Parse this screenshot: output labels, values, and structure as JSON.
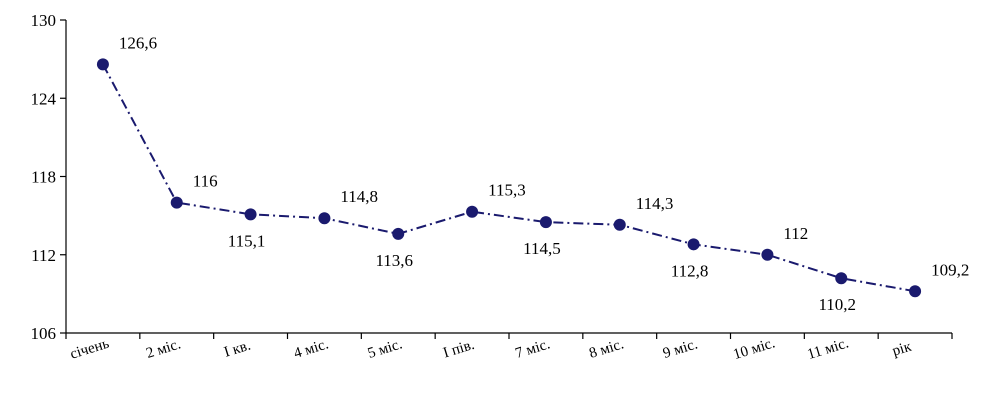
{
  "chart_data": {
    "type": "line",
    "categories": [
      "січень",
      "2 міс.",
      "I кв.",
      "4 міс.",
      "5 міс.",
      "I пів.",
      "7 міс.",
      "8 міс.",
      "9 міс.",
      "10 міс.",
      "11 міс.",
      "рік"
    ],
    "series": [
      {
        "values": [
          126.6,
          116,
          115.1,
          114.8,
          113.6,
          115.3,
          114.5,
          114.3,
          112.8,
          112,
          110.2,
          109.2
        ],
        "labels": [
          "126,6",
          "116",
          "115,1",
          "114,8",
          "113,6",
          "115,3",
          "114,5",
          "114,3",
          "112,8",
          "112",
          "110,2",
          "109,2"
        ],
        "color": "#1a1a6e",
        "line_style": "dash-dot"
      }
    ],
    "y_ticks": [
      106,
      112,
      118,
      124,
      130
    ],
    "y_tick_labels": [
      "106",
      "112",
      "118",
      "124",
      "130"
    ],
    "ylim": [
      106,
      130
    ],
    "label_placement": [
      "above",
      "above",
      "below",
      "above",
      "below",
      "above",
      "below",
      "above",
      "below",
      "above",
      "below",
      "above"
    ],
    "grid": false,
    "legend": "none",
    "axis_color": "#000000"
  }
}
